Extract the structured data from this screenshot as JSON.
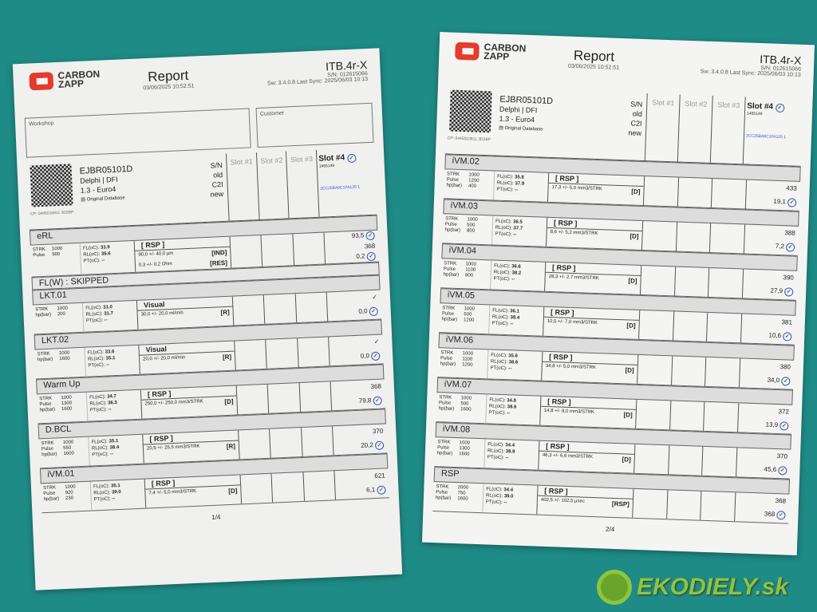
{
  "brand": {
    "line1": "CARBON",
    "line2": "ZAPP",
    "accent": "#e33b2e"
  },
  "pages": [
    {
      "title": "Report",
      "date": "03/06/2025 10:52:51",
      "model": "ITB.4r-X",
      "sn": "S/N: 012615066",
      "sw": "Sw: 3.4.0.8 Last Sync: 2025/06/03 10:13",
      "workshop": "Workshop",
      "customer": "Customer",
      "injector": {
        "code": "EJBR05101D",
        "make": "Delphi | DFI",
        "engine": "1.3 - Euro4",
        "db": "Original Database",
        "sn": "S/N",
        "old": "old",
        "c2i": "C2I",
        "new": "new",
        "cp": "CP: 0445010811 3D2BP"
      },
      "slots": [
        "Slot #1",
        "Slot #2",
        "Slot #3",
        "Slot #4"
      ],
      "slot4_sn": "1465149",
      "slot4_id": "2CC25BA8C1FA125 1",
      "skipped": "FL(W) : SKIPPED",
      "tests": [
        {
          "name": "eRL",
          "params": [
            [
              "STRK",
              "1000"
            ],
            [
              "Pulse",
              "900"
            ]
          ],
          "fl": "33.9",
          "rl": "36.6",
          "pt": "--",
          "method": "[ RSP ]",
          "spec": "90,0 +/- 40,0 µm",
          "tag": "[IND]",
          "spec2": "0,3 +/- 0,2 Ohm",
          "tag2": "[RES]",
          "v1": "93,5",
          "v2": "368",
          "v3": "0,2"
        },
        {
          "name": "LKT.01",
          "params": [
            [
              "STRK",
              "1000"
            ],
            [
              "hp(bar)",
              "200"
            ]
          ],
          "fl": "31.0",
          "rl": "31.7",
          "pt": "--",
          "method": "Visual",
          "spec": "30,0 +/- 20,0 ml/min",
          "tag": "[R]",
          "v1": "✓",
          "v2": "0,0"
        },
        {
          "name": "LKT.02",
          "params": [
            [
              "STRK",
              "1000"
            ],
            [
              "hp(bar)",
              "1600"
            ]
          ],
          "fl": "33.6",
          "rl": "35.1",
          "pt": "--",
          "method": "Visual",
          "spec": "20,0 +/- 20,0 ml/min",
          "tag": "[R]",
          "v1": "✓",
          "v2": "0,0"
        },
        {
          "name": "Warm Up",
          "params": [
            [
              "STRK",
              "1000"
            ],
            [
              "Pulse",
              "1300"
            ],
            [
              "hp(bar)",
              "1600"
            ]
          ],
          "fl": "34.7",
          "rl": "36.3",
          "pt": "--",
          "method": "[ RSP ]",
          "spec": "250,0 +/- 250,0 mm3/STRK",
          "tag": "[D]",
          "v1": "368",
          "v2": "79,8"
        },
        {
          "name": "D.BCL",
          "params": [
            [
              "STRK",
              "1000"
            ],
            [
              "Pulse",
              "550"
            ],
            [
              "hp(bar)",
              "1600"
            ]
          ],
          "fl": "35.1",
          "rl": "38.4",
          "pt": "--",
          "method": "[ RSP ]",
          "spec": "20,5 +/- 25,5 mm3/STRK",
          "tag": "[R]",
          "v1": "370",
          "v2": "20,2"
        },
        {
          "name": "iVM.01",
          "params": [
            [
              "STRK",
              "1000"
            ],
            [
              "Pulse",
              "920"
            ],
            [
              "hp(bar)",
              "230"
            ]
          ],
          "fl": "35.1",
          "rl": "39.0",
          "pt": "--",
          "method": "[ RSP ]",
          "spec": "7,4 +/- 5,0 mm3/STRK",
          "tag": "[D]",
          "v1": "621",
          "v2": "6,1"
        }
      ],
      "page_no": "1/4"
    },
    {
      "title": "Report",
      "date": "03/06/2025 10:52:51",
      "model": "ITB.4r-X",
      "sn": "S/N: 012615066",
      "sw": "Sw: 3.4.0.8 Last Sync: 2025/06/03 10:13",
      "injector": {
        "code": "EJBR05101D",
        "make": "Delphi | DFI",
        "engine": "1.3 - Euro4",
        "db": "Original Database",
        "sn": "S/N",
        "old": "old",
        "c2i": "C2I",
        "new": "new",
        "cp": "CP: 0445010811 3D2BP"
      },
      "slots": [
        "Slot #1",
        "Slot #2",
        "Slot #3",
        "Slot #4"
      ],
      "slot4_sn": "1465149",
      "slot4_id": "2CC25BA8C1FA125 1",
      "tests": [
        {
          "name": "iVM.02",
          "params": [
            [
              "STRK",
              "1000"
            ],
            [
              "Pulse",
              "1200"
            ],
            [
              "hp(bar)",
              "400"
            ]
          ],
          "fl": "35.8",
          "rl": "37.9",
          "pt": "--",
          "method": "[ RSP ]",
          "spec": "17,3 +/- 5,0 mm3/STRK",
          "tag": "[D]",
          "v1": "433",
          "v2": "19,1"
        },
        {
          "name": "iVM.03",
          "params": [
            [
              "STRK",
              "1000"
            ],
            [
              "Pulse",
              "500"
            ],
            [
              "hp(bar)",
              "800"
            ]
          ],
          "fl": "36.5",
          "rl": "37.7",
          "pt": "--",
          "method": "[ RSP ]",
          "spec": "8,6 +/- 5,2 mm3/STRK",
          "tag": "[D]",
          "v1": "388",
          "v2": "7,2"
        },
        {
          "name": "iVM.04",
          "params": [
            [
              "STRK",
              "1000"
            ],
            [
              "Pulse",
              "1100"
            ],
            [
              "hp(bar)",
              "800"
            ]
          ],
          "fl": "36.6",
          "rl": "38.2",
          "pt": "--",
          "method": "[ RSP ]",
          "spec": "28,3 +/- 2,7 mm3/STRK",
          "tag": "[D]",
          "v1": "390",
          "v2": "27,9"
        },
        {
          "name": "iVM.05",
          "params": [
            [
              "STRK",
              "1000"
            ],
            [
              "Pulse",
              "500"
            ],
            [
              "hp(bar)",
              "1200"
            ]
          ],
          "fl": "36.1",
          "rl": "38.4",
          "pt": "--",
          "method": "[ RSP ]",
          "spec": "10,5 +/- 7,0 mm3/STRK",
          "tag": "[D]",
          "v1": "381",
          "v2": "10,6"
        },
        {
          "name": "iVM.06",
          "params": [
            [
              "STRK",
              "1000"
            ],
            [
              "Pulse",
              "1100"
            ],
            [
              "hp(bar)",
              "1200"
            ]
          ],
          "fl": "35.6",
          "rl": "38.6",
          "pt": "--",
          "method": "[ RSP ]",
          "spec": "34,8 +/- 5,0 mm3/STRK",
          "tag": "[D]",
          "v1": "380",
          "v2": "34,0"
        },
        {
          "name": "iVM.07",
          "params": [
            [
              "STRK",
              "1000"
            ],
            [
              "Pulse",
              "500"
            ],
            [
              "hp(bar)",
              "1600"
            ]
          ],
          "fl": "34.8",
          "rl": "38.6",
          "pt": "--",
          "method": "[ RSP ]",
          "spec": "14,8 +/- 8,0 mm3/STRK",
          "tag": "[D]",
          "v1": "372",
          "v2": "13,9"
        },
        {
          "name": "iVM.08",
          "params": [
            [
              "STRK",
              "1000"
            ],
            [
              "Pulse",
              "1300"
            ],
            [
              "hp(bar)",
              "1600"
            ]
          ],
          "fl": "34.4",
          "rl": "38.9",
          "pt": "--",
          "method": "[ RSP ]",
          "spec": "46,3 +/- 6,6 mm3/STRK",
          "tag": "[D]",
          "v1": "370",
          "v2": "45,6"
        },
        {
          "name": "RSP",
          "params": [
            [
              "STRK",
              "2000"
            ],
            [
              "Pulse",
              "750"
            ],
            [
              "hp(bar)",
              "1600"
            ]
          ],
          "fl": "34.4",
          "rl": "39.0",
          "pt": "--",
          "method": "[ RSP ]",
          "spec": "402,5 +/- 102,5 µsec",
          "tag": "[RSP]",
          "v1": "368",
          "v2": "368"
        }
      ],
      "page_no": "2/4"
    }
  ],
  "labels": {
    "fl": "FL(oC):",
    "rl": "RL(oC):",
    "pt": "PT(oC):"
  },
  "watermark": "EKODIELY.sk"
}
